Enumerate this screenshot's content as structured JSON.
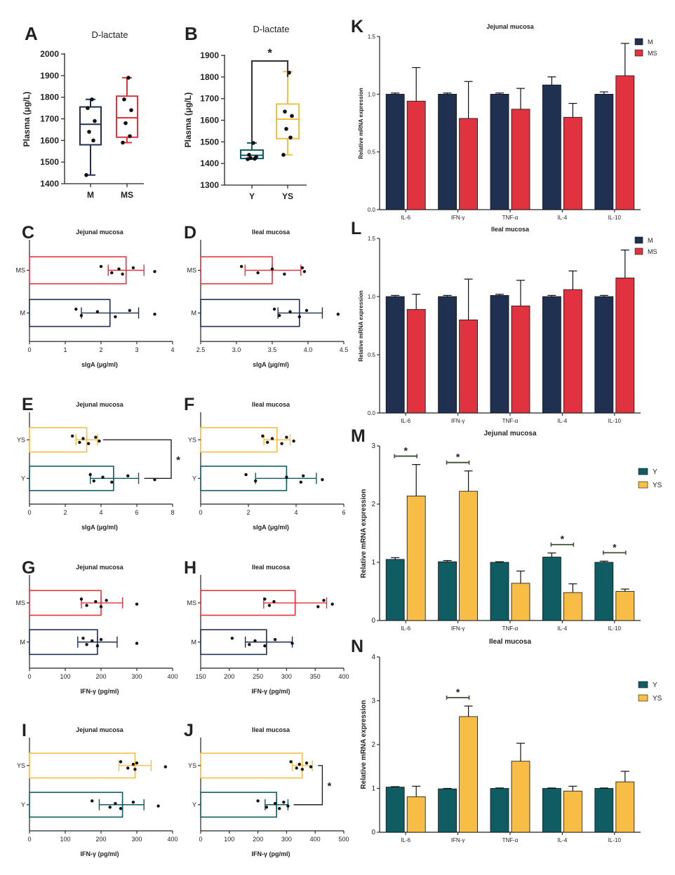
{
  "colors": {
    "M": "#1f3050",
    "MS": "#e0333f",
    "Y": "#0f5d63",
    "YS": "#f7bd45",
    "axis": "#222222"
  },
  "chart_data": [
    {
      "panel": "A",
      "type": "box",
      "title": "D-lactate",
      "ylabel": "Plasma  (μg/L)",
      "ylim": [
        1400,
        2000
      ],
      "yticks": [
        1400,
        1500,
        1600,
        1700,
        1800,
        1900,
        2000
      ],
      "groups": [
        {
          "name": "M",
          "color_key": "M",
          "min": 1440,
          "q1": 1580,
          "median": 1675,
          "q3": 1755,
          "max": 1790,
          "points": [
            1440,
            1600,
            1640,
            1690,
            1750,
            1790
          ]
        },
        {
          "name": "MS",
          "color_key": "MS",
          "min": 1590,
          "q1": 1615,
          "median": 1705,
          "q3": 1805,
          "max": 1890,
          "points": [
            1590,
            1620,
            1680,
            1740,
            1790,
            1890
          ]
        }
      ]
    },
    {
      "panel": "B",
      "type": "box",
      "title": "D-lactate",
      "ylabel": "Plasma  (μg/L)",
      "ylim": [
        1300,
        1900
      ],
      "yticks": [
        1300,
        1400,
        1500,
        1600,
        1700,
        1800,
        1900
      ],
      "sig": "*",
      "groups": [
        {
          "name": "Y",
          "color_key": "Y",
          "min": 1420,
          "q1": 1423,
          "median": 1438,
          "q3": 1462,
          "max": 1495,
          "points": [
            1420,
            1422,
            1425,
            1430,
            1440,
            1495
          ]
        },
        {
          "name": "YS",
          "color_key": "YS",
          "min": 1440,
          "q1": 1515,
          "median": 1605,
          "q3": 1675,
          "max": 1825,
          "points": [
            1440,
            1520,
            1560,
            1620,
            1640,
            1820
          ]
        }
      ]
    },
    {
      "panel": "C",
      "type": "hbar",
      "title": "Jejunal mucosa",
      "xlabel": "sIgA (μg/ml)",
      "xlim": [
        0,
        4
      ],
      "xticks": [
        "0",
        "1",
        "2",
        "3",
        "4"
      ],
      "bars": [
        {
          "name": "MS",
          "color_key": "MS",
          "value": 2.7,
          "lo": 2.2,
          "hi": 3.2,
          "points": [
            2.0,
            2.3,
            2.5,
            2.6,
            2.9,
            3.5
          ]
        },
        {
          "name": "M",
          "color_key": "M",
          "value": 2.25,
          "lo": 1.45,
          "hi": 3.05,
          "points": [
            1.3,
            1.45,
            1.9,
            2.4,
            2.8,
            3.5
          ]
        }
      ]
    },
    {
      "panel": "D",
      "type": "hbar",
      "title": "Ileal mucosa",
      "xlabel": "sIgA (μg/ml)",
      "xlim": [
        2.5,
        4.5
      ],
      "xticks": [
        "2.5",
        "3.0",
        "3.5",
        "4.0",
        "4.5"
      ],
      "bars": [
        {
          "name": "MS",
          "color_key": "MS",
          "value": 3.5,
          "lo": 3.12,
          "hi": 3.9,
          "points": [
            3.07,
            3.3,
            3.5,
            3.67,
            3.92,
            3.95
          ]
        },
        {
          "name": "M",
          "color_key": "M",
          "value": 3.88,
          "lo": 3.58,
          "hi": 4.2,
          "points": [
            3.53,
            3.6,
            3.75,
            3.88,
            3.98,
            4.42
          ]
        }
      ]
    },
    {
      "panel": "E",
      "type": "hbar",
      "title": "Jejunal mucosa",
      "xlabel": "sIgA (μg/ml)",
      "xlim": [
        0,
        8
      ],
      "xticks": [
        "0",
        "2",
        "4",
        "6",
        "8"
      ],
      "sig": "*",
      "bars": [
        {
          "name": "YS",
          "color_key": "YS",
          "value": 3.2,
          "lo": 2.6,
          "hi": 3.8,
          "points": [
            2.4,
            2.8,
            3.0,
            3.3,
            3.7,
            3.9
          ]
        },
        {
          "name": "Y",
          "color_key": "Y",
          "value": 4.7,
          "lo": 3.4,
          "hi": 6.1,
          "points": [
            3.4,
            3.6,
            4.1,
            4.6,
            5.5,
            7.0
          ]
        }
      ]
    },
    {
      "panel": "F",
      "type": "hbar",
      "title": "Ileal mucosa",
      "xlabel": "sIgA (μg/ml)",
      "xlim": [
        0,
        6
      ],
      "xticks": [
        "0",
        "2",
        "4",
        "6"
      ],
      "bars": [
        {
          "name": "YS",
          "color_key": "YS",
          "value": 3.2,
          "lo": 2.65,
          "hi": 3.75,
          "points": [
            2.6,
            2.8,
            3.0,
            3.4,
            3.6,
            3.9
          ]
        },
        {
          "name": "Y",
          "color_key": "Y",
          "value": 3.6,
          "lo": 2.3,
          "hi": 4.85,
          "points": [
            1.9,
            2.3,
            3.6,
            4.2,
            4.3,
            5.1
          ]
        }
      ]
    },
    {
      "panel": "G",
      "type": "hbar",
      "title": "Jejunal mucosa",
      "xlabel": "IFN-γ (pg/ml)",
      "xlim": [
        0,
        400
      ],
      "xticks": [
        "0",
        "100",
        "200",
        "300",
        "400"
      ],
      "bars": [
        {
          "name": "MS",
          "color_key": "MS",
          "value": 200,
          "lo": 145,
          "hi": 260,
          "points": [
            145,
            160,
            185,
            200,
            215,
            300
          ]
        },
        {
          "name": "M",
          "color_key": "M",
          "value": 190,
          "lo": 135,
          "hi": 245,
          "points": [
            150,
            160,
            175,
            190,
            200,
            300
          ]
        }
      ]
    },
    {
      "panel": "H",
      "type": "hbar",
      "title": "Ileal mucosa",
      "xlabel": "IFN-γ (pg/ml)",
      "xlim": [
        150,
        400
      ],
      "xticks": [
        "150",
        "200",
        "250",
        "300",
        "350",
        "400"
      ],
      "bars": [
        {
          "name": "MS",
          "color_key": "MS",
          "value": 315,
          "lo": 260,
          "hi": 370,
          "points": [
            262,
            270,
            278,
            355,
            365,
            380
          ]
        },
        {
          "name": "M",
          "color_key": "M",
          "value": 265,
          "lo": 228,
          "hi": 310,
          "points": [
            205,
            235,
            245,
            262,
            280,
            310
          ]
        }
      ]
    },
    {
      "panel": "I",
      "type": "hbar",
      "title": "Jejunal mucosa",
      "xlabel": "IFN-γ (pg/ml)",
      "xlim": [
        0,
        400
      ],
      "xticks": [
        "0",
        "100",
        "200",
        "300",
        "400"
      ],
      "bars": [
        {
          "name": "YS",
          "color_key": "YS",
          "value": 295,
          "lo": 250,
          "hi": 340,
          "points": [
            255,
            275,
            290,
            295,
            300,
            380
          ]
        },
        {
          "name": "Y",
          "color_key": "Y",
          "value": 260,
          "lo": 195,
          "hi": 320,
          "points": [
            175,
            225,
            240,
            255,
            290,
            360
          ]
        }
      ]
    },
    {
      "panel": "J",
      "type": "hbar",
      "title": "Ileal mucosa",
      "xlabel": "IFN-γ (pg/ml)",
      "xlim": [
        0,
        500
      ],
      "xticks": [
        "0",
        "100",
        "200",
        "300",
        "400",
        "500"
      ],
      "sig": "*",
      "bars": [
        {
          "name": "YS",
          "color_key": "YS",
          "value": 355,
          "lo": 320,
          "hi": 390,
          "points": [
            315,
            335,
            345,
            355,
            370,
            385
          ]
        },
        {
          "name": "Y",
          "color_key": "Y",
          "value": 265,
          "lo": 225,
          "hi": 305,
          "points": [
            200,
            230,
            260,
            275,
            290,
            305
          ]
        }
      ]
    },
    {
      "panel": "K",
      "type": "bar",
      "title": "Jejunal mucosa",
      "ylabel": "Relative mRNA expression",
      "ylim": [
        0,
        1.5
      ],
      "yticks": [
        "0.0",
        "0.5",
        "1.0",
        "1.5"
      ],
      "categories": [
        "IL-6",
        "IFN-γ",
        "TNF-α",
        "IL-4",
        "IL-10"
      ],
      "series": [
        {
          "name": "M",
          "color_key": "M",
          "values": [
            1.0,
            1.0,
            1.0,
            1.08,
            1.0
          ],
          "errors": [
            0.01,
            0.01,
            0.01,
            0.07,
            0.02
          ]
        },
        {
          "name": "MS",
          "color_key": "MS",
          "values": [
            0.94,
            0.79,
            0.87,
            0.8,
            1.16
          ],
          "errors": [
            0.29,
            0.32,
            0.18,
            0.12,
            0.28
          ]
        }
      ]
    },
    {
      "panel": "L",
      "type": "bar",
      "title": "Ileal mucosa",
      "ylabel": "Relative mRNA expression",
      "ylim": [
        0,
        1.5
      ],
      "yticks": [
        "0.0",
        "0.5",
        "1.0",
        "1.5"
      ],
      "categories": [
        "IL-6",
        "IFN-γ",
        "TNF-α",
        "IL-4",
        "IL-10"
      ],
      "series": [
        {
          "name": "M",
          "color_key": "M",
          "values": [
            1.0,
            1.0,
            1.01,
            1.0,
            1.0
          ],
          "errors": [
            0.01,
            0.01,
            0.01,
            0.01,
            0.01
          ]
        },
        {
          "name": "MS",
          "color_key": "MS",
          "values": [
            0.89,
            0.8,
            0.92,
            1.06,
            1.16
          ],
          "errors": [
            0.13,
            0.35,
            0.22,
            0.16,
            0.24
          ]
        }
      ]
    },
    {
      "panel": "M",
      "type": "bar",
      "title": "Jejunal mucosa",
      "ylabel": "Relative mRNA expression",
      "ylim": [
        0,
        3
      ],
      "yticks": [
        "0",
        "1",
        "2",
        "3"
      ],
      "categories": [
        "IL-6",
        "IFN-γ",
        "TNF-α",
        "IL-4",
        "IL-10"
      ],
      "series": [
        {
          "name": "Y",
          "color_key": "Y",
          "values": [
            1.05,
            1.01,
            1.0,
            1.09,
            1.0
          ],
          "errors": [
            0.03,
            0.02,
            0.01,
            0.07,
            0.02
          ]
        },
        {
          "name": "YS",
          "color_key": "YS",
          "values": [
            2.14,
            2.22,
            0.64,
            0.48,
            0.5
          ],
          "errors": [
            0.54,
            0.35,
            0.21,
            0.15,
            0.04
          ]
        }
      ],
      "sig": [
        0,
        1,
        3,
        4
      ]
    },
    {
      "panel": "N",
      "type": "bar",
      "title": "Ileal mucosa",
      "ylabel": "Relative mRNA expression",
      "ylim": [
        0,
        4
      ],
      "yticks": [
        "0",
        "1",
        "2",
        "3",
        "4"
      ],
      "categories": [
        "IL-6",
        "IFN-γ",
        "TNF-α",
        "IL-4",
        "IL-10"
      ],
      "series": [
        {
          "name": "Y",
          "color_key": "Y",
          "values": [
            1.03,
            0.99,
            1.0,
            1.0,
            1.0
          ],
          "errors": [
            0.01,
            0.01,
            0.01,
            0.01,
            0.01
          ]
        },
        {
          "name": "YS",
          "color_key": "YS",
          "values": [
            0.81,
            2.64,
            1.62,
            0.94,
            1.15
          ],
          "errors": [
            0.24,
            0.24,
            0.41,
            0.11,
            0.24
          ]
        }
      ],
      "sig": [
        1
      ]
    }
  ]
}
